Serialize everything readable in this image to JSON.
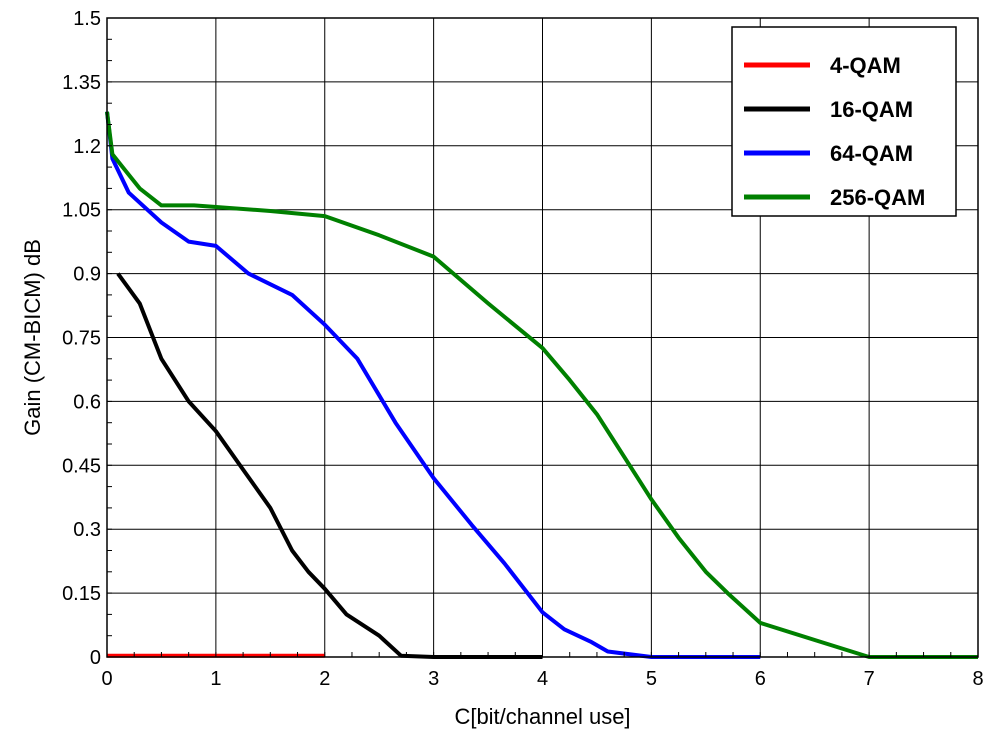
{
  "chart_data": {
    "type": "line",
    "title": "",
    "xlabel": "C[bit/channel use]",
    "ylabel": "Gain (CM-BICM) dB",
    "xlim": [
      0,
      8
    ],
    "ylim": [
      0,
      1.5
    ],
    "xticks": [
      "0",
      "1",
      "2",
      "3",
      "4",
      "5",
      "6",
      "7",
      "8"
    ],
    "yticks": [
      "0",
      "0.15",
      "0.3",
      "0.45",
      "0.6",
      "0.75",
      "0.9",
      "1.05",
      "1.2",
      "1.35",
      "1.5"
    ],
    "grid": true,
    "legend_position": "top-right",
    "series": [
      {
        "name": "4-QAM",
        "color": "#ff0000",
        "points": [
          [
            0,
            0.003
          ],
          [
            2,
            0.003
          ]
        ]
      },
      {
        "name": "16-QAM",
        "color": "#000000",
        "points": [
          [
            0.1,
            0.9
          ],
          [
            0.3,
            0.83
          ],
          [
            0.5,
            0.7
          ],
          [
            0.75,
            0.6
          ],
          [
            1.0,
            0.53
          ],
          [
            1.25,
            0.44
          ],
          [
            1.5,
            0.35
          ],
          [
            1.7,
            0.25
          ],
          [
            1.85,
            0.2
          ],
          [
            2.0,
            0.16
          ],
          [
            2.2,
            0.1
          ],
          [
            2.5,
            0.05
          ],
          [
            2.7,
            0.003
          ],
          [
            3.0,
            0.0
          ],
          [
            4.0,
            0.0
          ]
        ]
      },
      {
        "name": "64-QAM",
        "color": "#0000ff",
        "points": [
          [
            0,
            1.28
          ],
          [
            0.05,
            1.17
          ],
          [
            0.2,
            1.09
          ],
          [
            0.5,
            1.02
          ],
          [
            0.75,
            0.975
          ],
          [
            1.0,
            0.965
          ],
          [
            1.3,
            0.9
          ],
          [
            1.7,
            0.85
          ],
          [
            2.0,
            0.78
          ],
          [
            2.3,
            0.7
          ],
          [
            2.65,
            0.55
          ],
          [
            3.0,
            0.42
          ],
          [
            3.35,
            0.31
          ],
          [
            3.65,
            0.22
          ],
          [
            4.0,
            0.105
          ],
          [
            4.2,
            0.065
          ],
          [
            4.45,
            0.035
          ],
          [
            4.6,
            0.013
          ],
          [
            5.0,
            0.0
          ],
          [
            6.0,
            0.0
          ]
        ]
      },
      {
        "name": "256-QAM",
        "color": "#008000",
        "points": [
          [
            0,
            1.28
          ],
          [
            0.05,
            1.18
          ],
          [
            0.3,
            1.1
          ],
          [
            0.5,
            1.06
          ],
          [
            0.8,
            1.06
          ],
          [
            1.5,
            1.047
          ],
          [
            2.0,
            1.035
          ],
          [
            2.5,
            0.99
          ],
          [
            3.0,
            0.94
          ],
          [
            3.5,
            0.83
          ],
          [
            4.0,
            0.725
          ],
          [
            4.25,
            0.65
          ],
          [
            4.5,
            0.57
          ],
          [
            4.75,
            0.47
          ],
          [
            5.0,
            0.37
          ],
          [
            5.25,
            0.28
          ],
          [
            5.5,
            0.2
          ],
          [
            5.7,
            0.15
          ],
          [
            6.0,
            0.08
          ],
          [
            6.5,
            0.04
          ],
          [
            7.0,
            0.0
          ],
          [
            8.0,
            0.0
          ]
        ]
      }
    ]
  }
}
